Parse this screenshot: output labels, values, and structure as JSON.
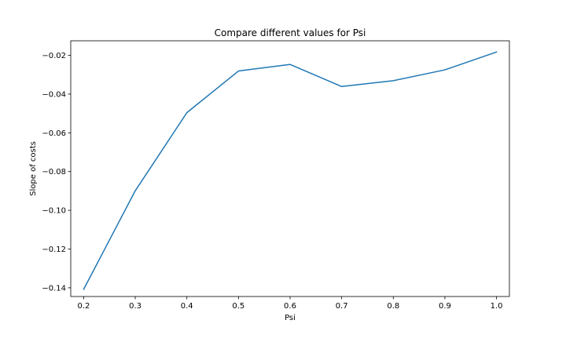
{
  "chart_data": {
    "type": "line",
    "title": "Compare different values for Psi",
    "xlabel": "Psi",
    "ylabel": "Slope of costs",
    "xlim": [
      0.175,
      1.025
    ],
    "ylim": [
      -0.1445,
      -0.0125
    ],
    "xticks": [
      0.2,
      0.3,
      0.4,
      0.5,
      0.6,
      0.7,
      0.8,
      0.9,
      1.0
    ],
    "xtick_labels": [
      "0.2",
      "0.3",
      "0.4",
      "0.5",
      "0.6",
      "0.7",
      "0.8",
      "0.9",
      "1.0"
    ],
    "yticks": [
      -0.14,
      -0.12,
      -0.1,
      -0.08,
      -0.06,
      -0.04,
      -0.02
    ],
    "ytick_labels": [
      "−0.14",
      "−0.12",
      "−0.10",
      "−0.08",
      "−0.06",
      "−0.04",
      "−0.02"
    ],
    "grid": false,
    "series": [
      {
        "color": "#1f77b4",
        "x": [
          0.2,
          0.3,
          0.4,
          0.5,
          0.6,
          0.7,
          0.8,
          0.9,
          1.0
        ],
        "y": [
          -0.1408,
          -0.0899,
          -0.0496,
          -0.0281,
          -0.0247,
          -0.0361,
          -0.0331,
          -0.0275,
          -0.0183
        ]
      }
    ]
  }
}
